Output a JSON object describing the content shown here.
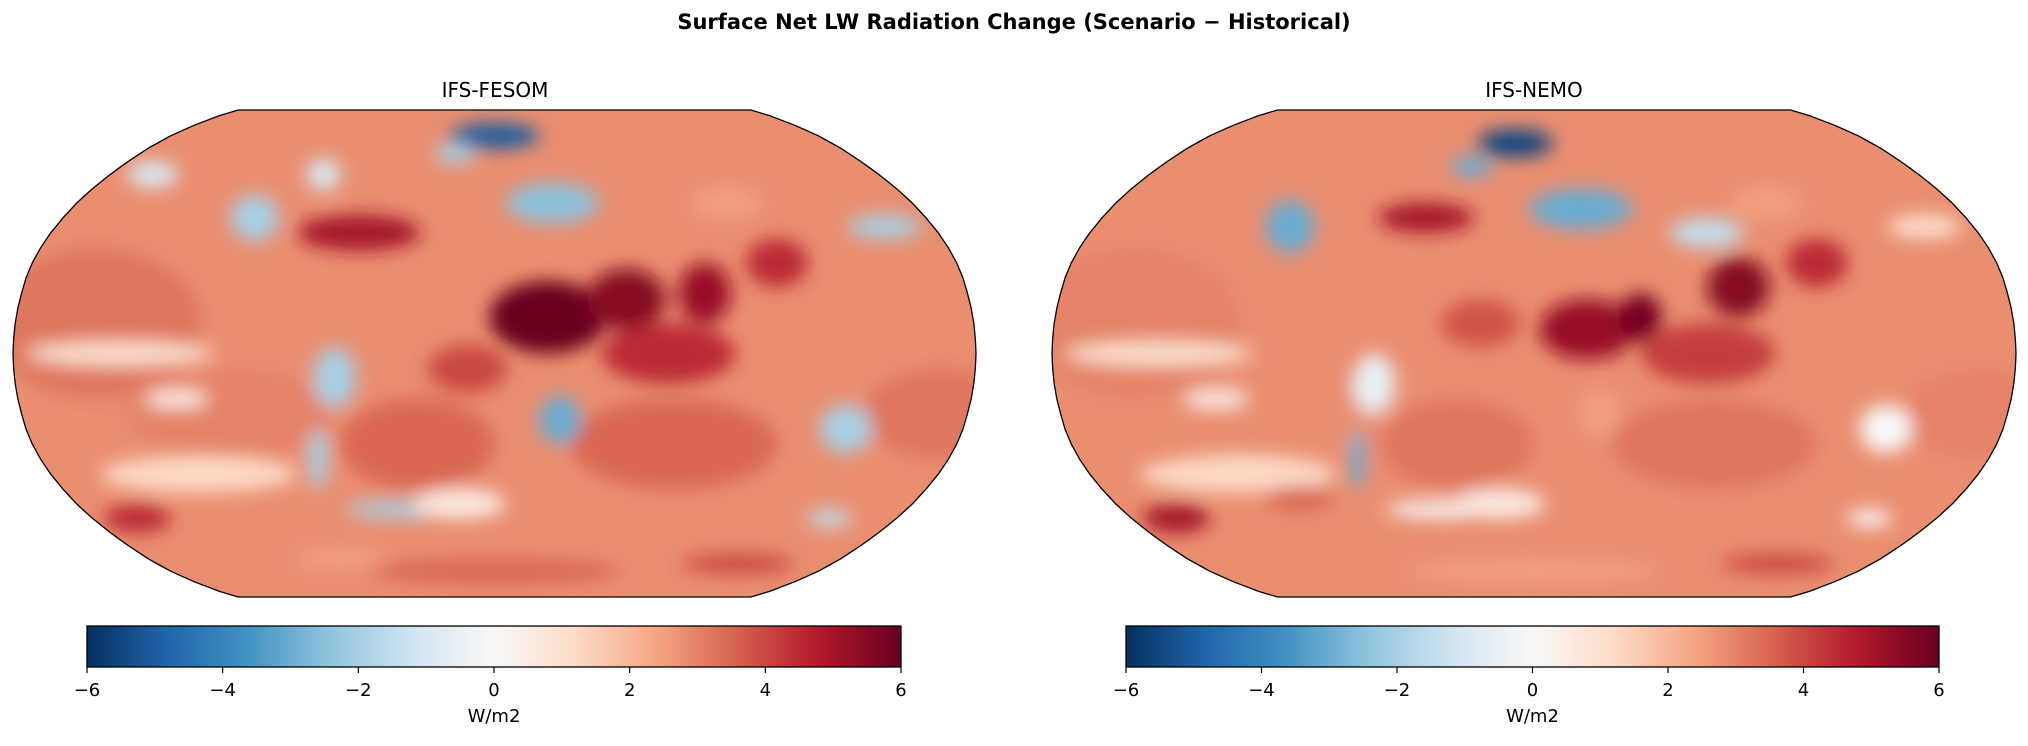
{
  "chart_data": {
    "type": "heatmap",
    "title": "Surface Net LW Radiation Change (Scenario − Historical)",
    "panels": [
      {
        "title": "IFS-FESOM",
        "projection": "robinson"
      },
      {
        "title": "IFS-NEMO",
        "projection": "robinson"
      }
    ],
    "colorbar": {
      "colormap": "RdBu_r",
      "range": [
        -6,
        6
      ],
      "ticks": [
        -6,
        -4,
        -2,
        0,
        2,
        4,
        6
      ],
      "tick_labels": [
        "−6",
        "−4",
        "−2",
        "0",
        "2",
        "4",
        "6"
      ],
      "label": "W/m2",
      "orientation": "horizontal",
      "placement": "bottom"
    }
  }
}
